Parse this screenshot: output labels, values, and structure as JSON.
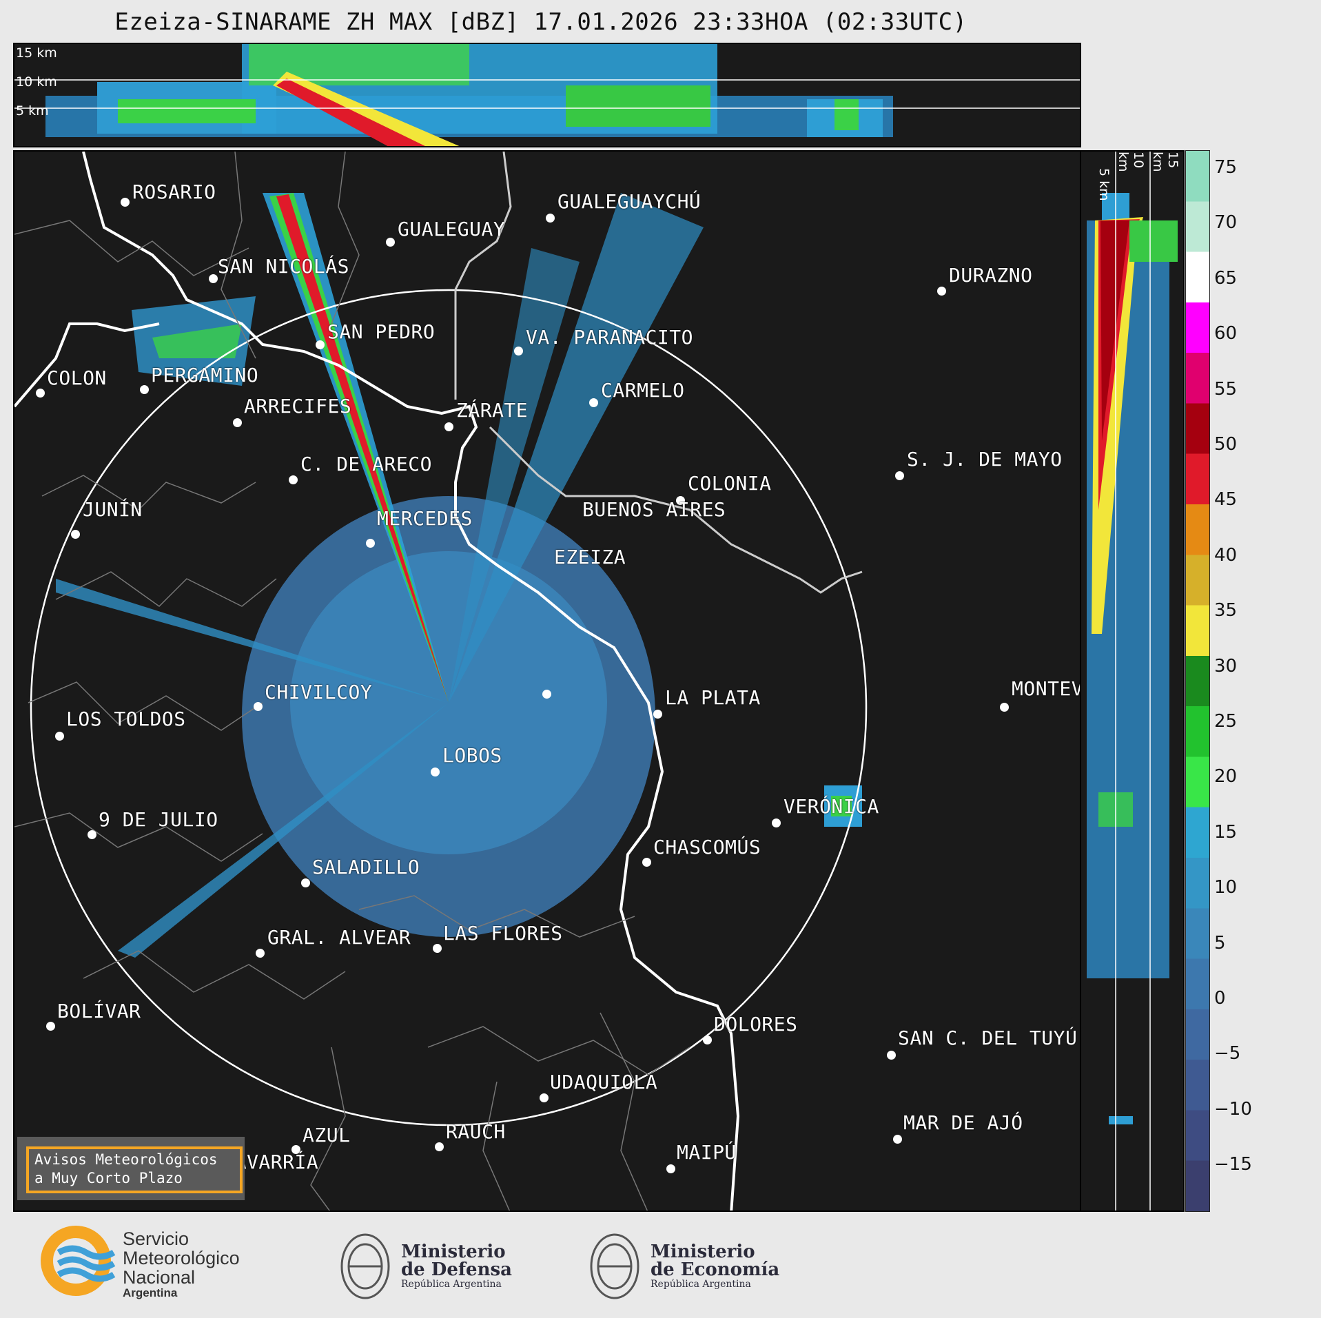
{
  "title": "Ezeiza-SINARAME ZH MAX [dBZ] 17.01.2026 23:33HOA (02:33UTC)",
  "altitude_labels": {
    "top": [
      "15 km",
      "10 km",
      "5 km"
    ],
    "side": [
      "5 km",
      "10 km",
      "15 km"
    ]
  },
  "cities": [
    {
      "name": "ROSARIO"
    },
    {
      "name": "GUALEGUAYCHÚ"
    },
    {
      "name": "GUALEGUAY"
    },
    {
      "name": "SAN NICOLÁS"
    },
    {
      "name": "DURAZNO"
    },
    {
      "name": "SAN PEDRO"
    },
    {
      "name": "VA. PARANACITO"
    },
    {
      "name": "COLON"
    },
    {
      "name": "PERGAMINO"
    },
    {
      "name": "CARMELO"
    },
    {
      "name": "ARRECIFES"
    },
    {
      "name": "ZÁRATE"
    },
    {
      "name": "S. J. DE MAYO"
    },
    {
      "name": "C. DE ARECO"
    },
    {
      "name": "COLONIA"
    },
    {
      "name": "JUNÍN"
    },
    {
      "name": "BUENOS AIRES"
    },
    {
      "name": "MERCEDES"
    },
    {
      "name": "EZEIZA"
    },
    {
      "name": "MONTEVIDEO"
    },
    {
      "name": "CHIVILCOY"
    },
    {
      "name": "LA PLATA"
    },
    {
      "name": "LOS TOLDOS"
    },
    {
      "name": "LOBOS"
    },
    {
      "name": "VERÓNICA"
    },
    {
      "name": "9 DE JULIO"
    },
    {
      "name": "CHASCOMÚS"
    },
    {
      "name": "SALADILLO"
    },
    {
      "name": "GRAL. ALVEAR"
    },
    {
      "name": "LAS FLORES"
    },
    {
      "name": "BOLÍVAR"
    },
    {
      "name": "DOLORES"
    },
    {
      "name": "SAN C. DEL TUYÚ"
    },
    {
      "name": "UDAQUIOLA"
    },
    {
      "name": "MAR DE AJÓ"
    },
    {
      "name": "AZUL"
    },
    {
      "name": "RAUCH"
    },
    {
      "name": "OLAVARRÍA"
    },
    {
      "name": "MAIPÚ"
    }
  ],
  "colorbar": {
    "ticks": [
      "75",
      "70",
      "65",
      "60",
      "55",
      "50",
      "45",
      "40",
      "35",
      "30",
      "25",
      "20",
      "15",
      "10",
      "5",
      "0",
      "−5",
      "−10",
      "−15"
    ],
    "colors": [
      "#3b3f6e",
      "#3e4c82",
      "#3f5a92",
      "#3f69a1",
      "#3d78ae",
      "#3a87ba",
      "#3496c6",
      "#2ea6d1",
      "#39e648",
      "#22c22e",
      "#1a8a1e",
      "#f2e63a",
      "#d6b02a",
      "#e58a14",
      "#e01a2a",
      "#a5000f",
      "#e0006e",
      "#ff00ff",
      "#ffffff",
      "#bde9d5",
      "#8fdcbf"
    ]
  },
  "badge": {
    "line1": "Avisos Meteorológicos",
    "line2": "a Muy Corto Plazo"
  },
  "footer": {
    "smn": {
      "line1": "Servicio",
      "line2": "Meteorológico",
      "line3": "Nacional",
      "line4": "Argentina"
    },
    "defensa": {
      "line1": "Ministerio",
      "line2": "de Defensa",
      "line3": "República Argentina"
    },
    "economia": {
      "line1": "Ministerio",
      "line2": "de Economía",
      "line3": "República Argentina"
    }
  }
}
